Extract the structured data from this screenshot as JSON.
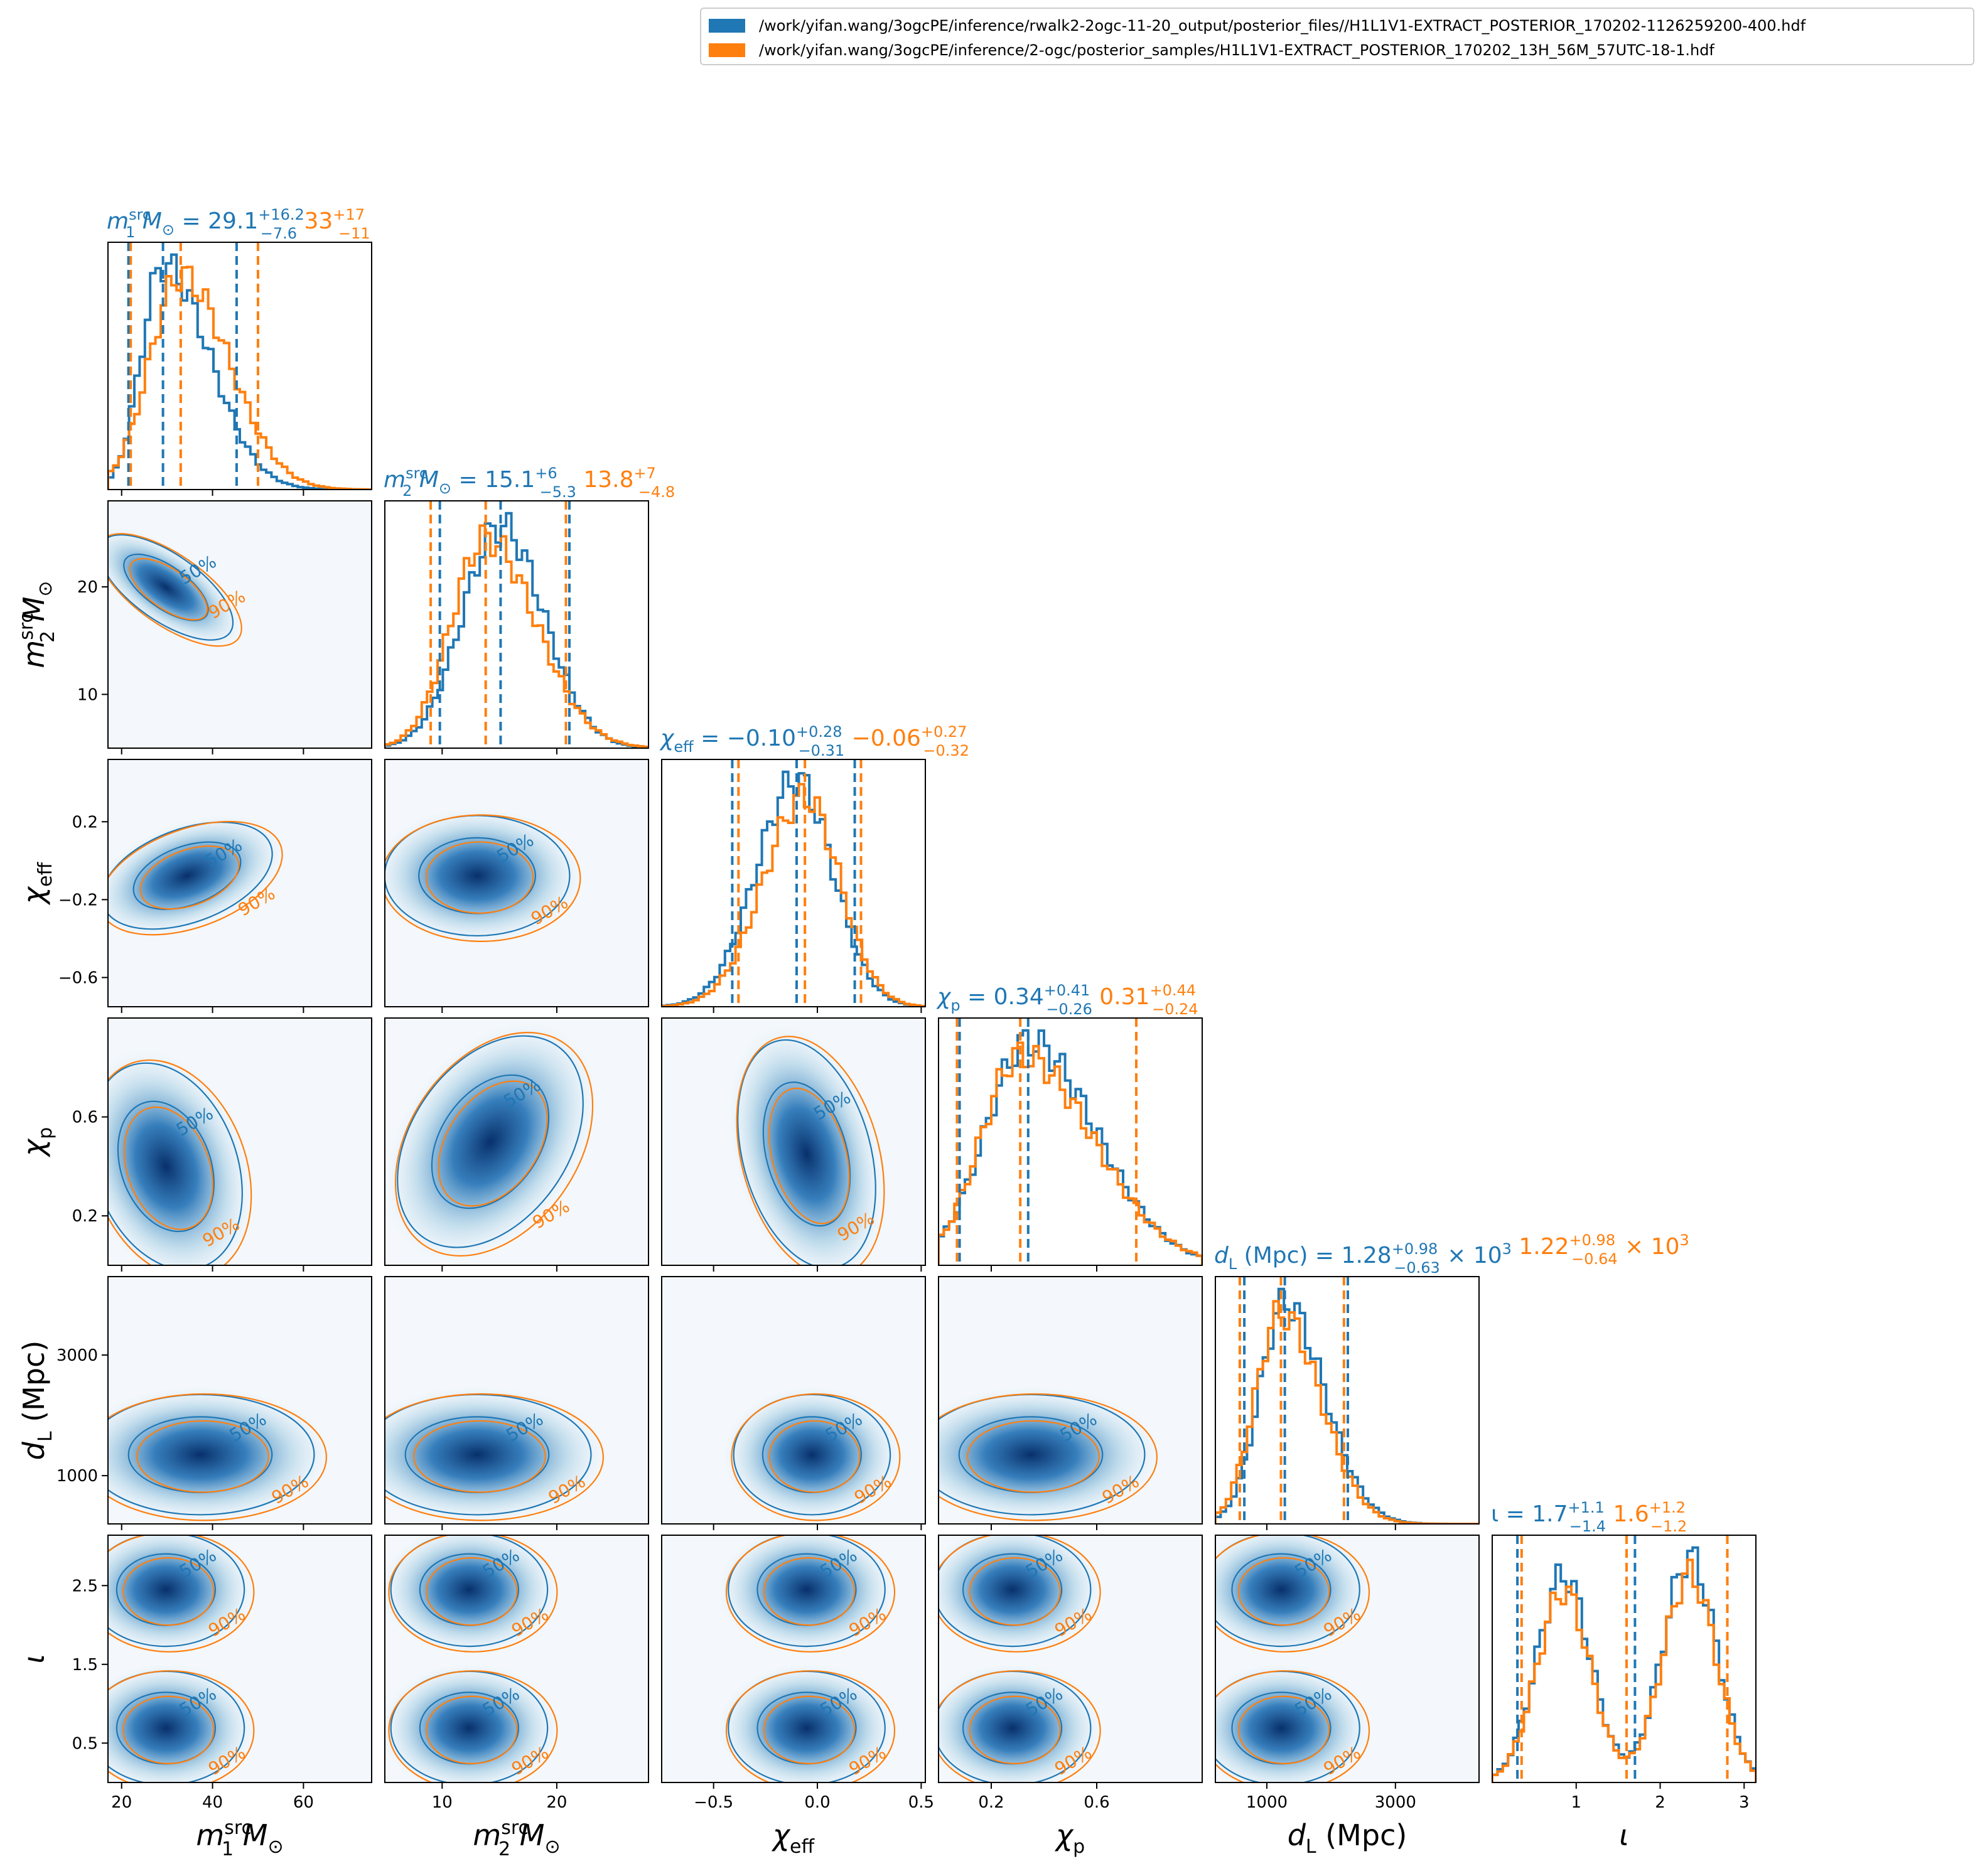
{
  "colors": {
    "blue": "#1f77b4",
    "orange": "#ff7f0e"
  },
  "legend": {
    "blue_label": "/work/yifan.wang/3ogcPE/inference/rwalk2-2ogc-11-20_output/posterior_files//H1L1V1-EXTRACT_POSTERIOR_170202-1126259200-400.hdf",
    "orange_label": "/work/yifan.wang/3ogcPE/inference/2-ogc/posterior_samples/H1L1V1-EXTRACT_POSTERIOR_170202_13H_56M_57UTC-18-1.hdf"
  },
  "chart_data": {
    "type": "corner",
    "grid": false,
    "legend_position": "top-right",
    "parameters": [
      {
        "key": "m1",
        "label_main": "m",
        "label_sub": "1",
        "label_sup": "src",
        "label_unit": "M",
        "label_unit_sub": "⊙",
        "range": [
          17,
          75
        ],
        "ticks": [
          20,
          40,
          60
        ],
        "tick_labels": [
          "20",
          "40",
          "60"
        ],
        "title_blue": {
          "median": "29.1",
          "plus": "+16.2",
          "minus": "−7.6"
        },
        "title_orange": {
          "median": "33",
          "plus": "+17",
          "minus": "−11"
        },
        "blue_quantiles": [
          21.5,
          29.1,
          45.3
        ],
        "orange_quantiles": [
          22.0,
          33.0,
          50.0
        ]
      },
      {
        "key": "m2",
        "label_main": "m",
        "label_sub": "2",
        "label_sup": "src",
        "label_unit": "M",
        "label_unit_sub": "⊙",
        "range": [
          5,
          28
        ],
        "ticks": [
          10,
          20
        ],
        "tick_labels": [
          "10",
          "20"
        ],
        "title_blue": {
          "median": "15.1",
          "plus": "+6",
          "minus": "−5.3"
        },
        "title_orange": {
          "median": "13.8",
          "plus": "+7",
          "minus": "−4.8"
        },
        "blue_quantiles": [
          9.8,
          15.1,
          21.1
        ],
        "orange_quantiles": [
          9.0,
          13.8,
          20.8
        ]
      },
      {
        "key": "chieff",
        "label_main": "χ",
        "label_sub": "eff",
        "label_sup": "",
        "label_unit": "",
        "label_unit_sub": "",
        "range": [
          -0.75,
          0.52
        ],
        "ticks": [
          -0.5,
          0.0,
          0.5
        ],
        "tick_labels": [
          "−0.5",
          "0.0",
          "0.5"
        ],
        "ytick_values": [
          -0.6,
          -0.2,
          0.2
        ],
        "ytick_labels": [
          "−0.6",
          "−0.2",
          "0.2"
        ],
        "title_blue": {
          "median": "−0.10",
          "plus": "+0.28",
          "minus": "−0.31"
        },
        "title_orange": {
          "median": "−0.06",
          "plus": "+0.27",
          "minus": "−0.32"
        },
        "blue_quantiles": [
          -0.41,
          -0.1,
          0.18
        ],
        "orange_quantiles": [
          -0.38,
          -0.06,
          0.21
        ]
      },
      {
        "key": "chip",
        "label_main": "χ",
        "label_sub": "p",
        "label_sup": "",
        "label_unit": "",
        "label_unit_sub": "",
        "range": [
          0.0,
          1.0
        ],
        "ticks": [
          0.2,
          0.6
        ],
        "tick_labels": [
          "0.2",
          "0.6"
        ],
        "title_blue": {
          "median": "0.34",
          "plus": "+0.41",
          "minus": "−0.26"
        },
        "title_orange": {
          "median": "0.31",
          "plus": "+0.44",
          "minus": "−0.24"
        },
        "blue_quantiles": [
          0.08,
          0.34,
          0.75
        ],
        "orange_quantiles": [
          0.07,
          0.31,
          0.75
        ]
      },
      {
        "key": "dl",
        "label_main": "d",
        "label_sub": "L",
        "label_sup": "",
        "label_unit": "(Mpc)",
        "label_unit_sub": "",
        "range": [
          200,
          4300
        ],
        "ticks": [
          1000,
          3000
        ],
        "tick_labels": [
          "1000",
          "3000"
        ],
        "title_blue": {
          "median": "1.28",
          "plus": "+0.98",
          "minus": "−0.63",
          "suffix": "× 10",
          "exp": "3"
        },
        "title_orange": {
          "median": "1.22",
          "plus": "+0.98",
          "minus": "−0.64",
          "suffix": "× 10",
          "exp": "3"
        },
        "blue_quantiles": [
          650,
          1280,
          2260
        ],
        "orange_quantiles": [
          580,
          1220,
          2200
        ]
      },
      {
        "key": "iota",
        "label_main": "ι",
        "label_sub": "",
        "label_sup": "",
        "label_unit": "",
        "label_unit_sub": "",
        "range": [
          0.0,
          3.14
        ],
        "ticks": [
          1,
          2,
          3
        ],
        "tick_labels": [
          "1",
          "2",
          "3"
        ],
        "ytick_values": [
          0.5,
          1.5,
          2.5
        ],
        "ytick_labels": [
          "0.5",
          "1.5",
          "2.5"
        ],
        "title_blue": {
          "prefix": "ι = ",
          "median": "1.7",
          "plus": "+1.1",
          "minus": "−1.4"
        },
        "title_orange": {
          "median": "1.6",
          "plus": "+1.2",
          "minus": "−1.2"
        },
        "blue_quantiles": [
          0.3,
          1.7,
          2.8
        ],
        "orange_quantiles": [
          0.35,
          1.6,
          2.8
        ]
      }
    ],
    "contour_levels": [
      "50%",
      "90%"
    ]
  }
}
